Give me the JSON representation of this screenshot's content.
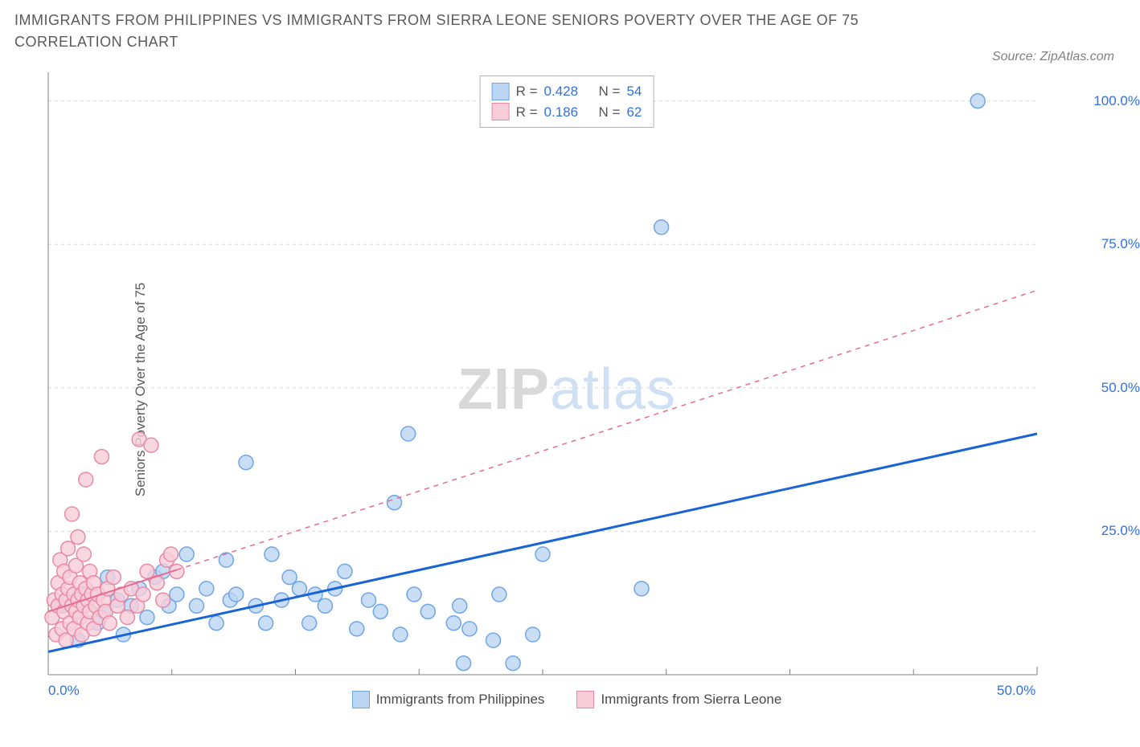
{
  "title": "IMMIGRANTS FROM PHILIPPINES VS IMMIGRANTS FROM SIERRA LEONE SENIORS POVERTY OVER THE AGE OF 75 CORRELATION CHART",
  "source": "Source: ZipAtlas.com",
  "ylabel": "Seniors Poverty Over the Age of 75",
  "watermark_zip": "ZIP",
  "watermark_atlas": "atlas",
  "chart": {
    "type": "scatter",
    "background_color": "#ffffff",
    "grid_color": "#d8d8d8",
    "axis_color": "#808080",
    "xlim": [
      0,
      50
    ],
    "ylim": [
      0,
      105
    ],
    "x_ticks": [
      0,
      50
    ],
    "x_tick_labels": [
      "0.0%",
      "50.0%"
    ],
    "x_minor_ticks": [
      6.25,
      12.5,
      18.75,
      25,
      31.25,
      37.5,
      43.75
    ],
    "y_ticks": [
      25,
      50,
      75,
      100
    ],
    "y_tick_labels": [
      "25.0%",
      "50.0%",
      "75.0%",
      "100.0%"
    ],
    "marker_radius": 9,
    "marker_stroke_width": 1.5,
    "trend_line_width": 3,
    "trend_line_width_thin": 2,
    "series": [
      {
        "name": "Immigrants from Philippines",
        "color_fill": "#bcd5f2",
        "color_stroke": "#6ea6e6",
        "trend_color": "#1864d6",
        "R": "0.428",
        "N": "54",
        "trend_solid_extent": 50,
        "trend_start_y": 4,
        "trend_end_y": 42,
        "points": [
          [
            0.7,
            12
          ],
          [
            1.5,
            6
          ],
          [
            1.8,
            14
          ],
          [
            2.5,
            9
          ],
          [
            2.8,
            11
          ],
          [
            3.0,
            17
          ],
          [
            3.5,
            13
          ],
          [
            3.8,
            7
          ],
          [
            4.2,
            12
          ],
          [
            4.6,
            15
          ],
          [
            5.0,
            10
          ],
          [
            5.4,
            17
          ],
          [
            5.8,
            18
          ],
          [
            6.1,
            12
          ],
          [
            6.5,
            14
          ],
          [
            7.0,
            21
          ],
          [
            7.5,
            12
          ],
          [
            8.0,
            15
          ],
          [
            8.5,
            9
          ],
          [
            9.0,
            20
          ],
          [
            9.2,
            13
          ],
          [
            9.5,
            14
          ],
          [
            10.0,
            37
          ],
          [
            10.5,
            12
          ],
          [
            11.0,
            9
          ],
          [
            11.3,
            21
          ],
          [
            11.8,
            13
          ],
          [
            12.2,
            17
          ],
          [
            12.7,
            15
          ],
          [
            13.2,
            9
          ],
          [
            13.5,
            14
          ],
          [
            14.0,
            12
          ],
          [
            14.5,
            15
          ],
          [
            15.0,
            18
          ],
          [
            15.6,
            8
          ],
          [
            16.2,
            13
          ],
          [
            16.8,
            11
          ],
          [
            17.5,
            30
          ],
          [
            17.8,
            7
          ],
          [
            18.2,
            42
          ],
          [
            18.5,
            14
          ],
          [
            19.2,
            11
          ],
          [
            20.5,
            9
          ],
          [
            20.8,
            12
          ],
          [
            21.0,
            2
          ],
          [
            21.3,
            8
          ],
          [
            22.5,
            6
          ],
          [
            22.8,
            14
          ],
          [
            23.5,
            2
          ],
          [
            24.5,
            7
          ],
          [
            25.0,
            21
          ],
          [
            30.0,
            15
          ],
          [
            31.0,
            78
          ],
          [
            47.0,
            100
          ]
        ]
      },
      {
        "name": "Immigrants from Sierra Leone",
        "color_fill": "#f6cdd9",
        "color_stroke": "#e88aa6",
        "trend_color": "#e76b90",
        "R": "0.186",
        "N": "62",
        "trend_solid_extent": 6.5,
        "trend_start_y": 11,
        "trend_end_y": 67,
        "points": [
          [
            0.2,
            10
          ],
          [
            0.3,
            13
          ],
          [
            0.4,
            7
          ],
          [
            0.5,
            16
          ],
          [
            0.5,
            12
          ],
          [
            0.6,
            20
          ],
          [
            0.7,
            8
          ],
          [
            0.7,
            14
          ],
          [
            0.8,
            11
          ],
          [
            0.8,
            18
          ],
          [
            0.9,
            6
          ],
          [
            0.9,
            13
          ],
          [
            1.0,
            22
          ],
          [
            1.0,
            15
          ],
          [
            1.1,
            9
          ],
          [
            1.1,
            17
          ],
          [
            1.2,
            12
          ],
          [
            1.2,
            28
          ],
          [
            1.3,
            14
          ],
          [
            1.3,
            8
          ],
          [
            1.4,
            19
          ],
          [
            1.4,
            11
          ],
          [
            1.5,
            24
          ],
          [
            1.5,
            13
          ],
          [
            1.6,
            10
          ],
          [
            1.6,
            16
          ],
          [
            1.7,
            14
          ],
          [
            1.7,
            7
          ],
          [
            1.8,
            21
          ],
          [
            1.8,
            12
          ],
          [
            1.9,
            15
          ],
          [
            1.9,
            34
          ],
          [
            2.0,
            9
          ],
          [
            2.0,
            13
          ],
          [
            2.1,
            18
          ],
          [
            2.1,
            11
          ],
          [
            2.2,
            14
          ],
          [
            2.3,
            16
          ],
          [
            2.3,
            8
          ],
          [
            2.4,
            12
          ],
          [
            2.5,
            14
          ],
          [
            2.6,
            10
          ],
          [
            2.7,
            38
          ],
          [
            2.8,
            13
          ],
          [
            2.9,
            11
          ],
          [
            3.0,
            15
          ],
          [
            3.1,
            9
          ],
          [
            3.3,
            17
          ],
          [
            3.5,
            12
          ],
          [
            3.7,
            14
          ],
          [
            4.0,
            10
          ],
          [
            4.2,
            15
          ],
          [
            4.5,
            12
          ],
          [
            4.6,
            41
          ],
          [
            4.8,
            14
          ],
          [
            5.0,
            18
          ],
          [
            5.2,
            40
          ],
          [
            5.5,
            16
          ],
          [
            5.8,
            13
          ],
          [
            6.0,
            20
          ],
          [
            6.2,
            21
          ],
          [
            6.5,
            18
          ]
        ]
      }
    ]
  },
  "legend_box": {
    "rows": [
      {
        "swatch_fill": "#bcd5f2",
        "swatch_stroke": "#6ea6e6",
        "r_label": "R =",
        "r_val": "0.428",
        "n_label": "N =",
        "n_val": "54"
      },
      {
        "swatch_fill": "#f6cdd9",
        "swatch_stroke": "#e88aa6",
        "r_label": "R =",
        "r_val": "0.186",
        "n_label": "N =",
        "n_val": "62"
      }
    ]
  },
  "bottom_legend": [
    {
      "swatch_fill": "#bcd5f2",
      "swatch_stroke": "#6ea6e6",
      "label": "Immigrants from Philippines"
    },
    {
      "swatch_fill": "#f6cdd9",
      "swatch_stroke": "#e88aa6",
      "label": "Immigrants from Sierra Leone"
    }
  ]
}
